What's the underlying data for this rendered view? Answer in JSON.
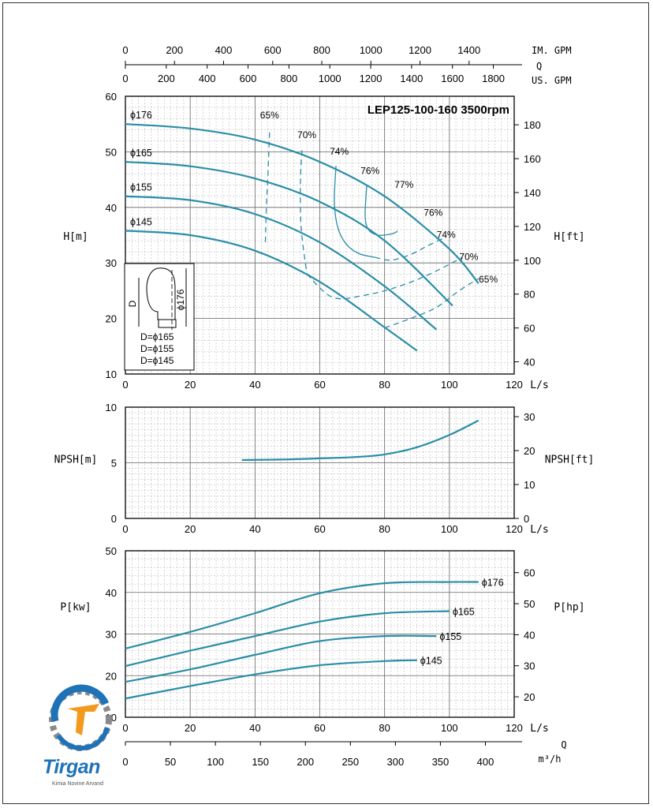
{
  "chart_data": [
    {
      "type": "line",
      "title": "LEP125-100-160 3500rpm",
      "xlabel": "L/s",
      "ylabel": "H[m]",
      "ylabel_right": "H[ft]",
      "xlim": [
        0,
        120
      ],
      "ylim": [
        10,
        60
      ],
      "x_ticks": [
        0,
        20,
        40,
        60,
        80,
        100,
        120
      ],
      "y_ticks": [
        10,
        20,
        30,
        40,
        50,
        60
      ],
      "y2_ticks": [
        40,
        60,
        80,
        100,
        120,
        140,
        160,
        180
      ],
      "top_axis_im_gpm": {
        "label": "IM. GPM",
        "ticks": [
          0,
          200,
          400,
          600,
          800,
          1000,
          1200,
          1400
        ]
      },
      "top_axis_us_gpm": {
        "label": "US. GPM",
        "ticks": [
          0,
          200,
          400,
          600,
          800,
          1000,
          1200,
          1400,
          1600,
          1800
        ]
      },
      "top_axis_q_label": "Q",
      "series": [
        {
          "name": "ϕ176",
          "x": [
            0,
            20,
            40,
            60,
            80,
            100,
            109
          ],
          "y": [
            55,
            54.2,
            52.2,
            48.2,
            42,
            32.5,
            26.3
          ]
        },
        {
          "name": "ϕ165",
          "x": [
            0,
            20,
            40,
            60,
            80,
            101
          ],
          "y": [
            48.2,
            47.4,
            45.2,
            41,
            34,
            22.3
          ]
        },
        {
          "name": "ϕ155",
          "x": [
            0,
            20,
            40,
            60,
            80,
            96
          ],
          "y": [
            42,
            41.3,
            38.8,
            33.7,
            25.8,
            18
          ]
        },
        {
          "name": "ϕ145",
          "x": [
            0,
            20,
            40,
            60,
            80,
            90
          ],
          "y": [
            35.8,
            35,
            32.2,
            26.6,
            18.4,
            14.2
          ]
        }
      ],
      "efficiency_curves": [
        {
          "label": "65%",
          "x": [
            44.5,
            44,
            43.5,
            43.2
          ],
          "y": [
            53.5,
            46,
            40,
            33.5
          ]
        },
        {
          "label": "70%",
          "x": [
            54.5,
            54,
            54.3,
            56
          ],
          "y": [
            50.3,
            44,
            36,
            28
          ]
        },
        {
          "label": "74%",
          "x": [
            65,
            64.5,
            65.5,
            68,
            72,
            77
          ],
          "y": [
            47.5,
            41,
            36.5,
            33.5,
            31.7,
            31
          ]
        },
        {
          "label": "76%",
          "x": [
            74.5,
            74,
            75,
            78,
            82,
            84
          ],
          "y": [
            44,
            38.5,
            36,
            35,
            35.2,
            35.7
          ]
        },
        {
          "label": "74%",
          "x": [
            77,
            82,
            88,
            93,
            98
          ],
          "y": [
            31,
            30.5,
            31.5,
            33,
            34.4
          ]
        },
        {
          "label": "70%",
          "x": [
            56,
            64,
            74,
            84,
            94,
            104
          ],
          "y": [
            28,
            23.8,
            24.2,
            25.7,
            28,
            31
          ]
        },
        {
          "label": "65%",
          "x": [
            80,
            88,
            96,
            103,
            109
          ],
          "y": [
            18.3,
            20,
            22,
            25,
            27.2
          ]
        }
      ],
      "efficiency_labels": [
        "65%",
        "70%",
        "74%",
        "76%",
        "77%",
        "76%",
        "74%",
        "70%",
        "65%"
      ],
      "impeller_inset": {
        "label_d": "D",
        "label_dia": "ϕ176",
        "lines": [
          "D=ϕ165",
          "D=ϕ155",
          "D=ϕ145"
        ]
      },
      "grid": true
    },
    {
      "type": "line",
      "xlabel": "L/s",
      "ylabel": "NPSH[m]",
      "ylabel_right": "NPSH[ft]",
      "xlim": [
        0,
        120
      ],
      "ylim": [
        0,
        10
      ],
      "x_ticks": [
        0,
        20,
        40,
        60,
        80,
        100,
        120
      ],
      "y_ticks": [
        0,
        5,
        10
      ],
      "y2_ticks": [
        0,
        10,
        20,
        30
      ],
      "series": [
        {
          "x": [
            36,
            50,
            60,
            70,
            80,
            90,
            100,
            109
          ],
          "y": [
            5.25,
            5.3,
            5.4,
            5.5,
            5.75,
            6.4,
            7.5,
            8.8
          ]
        }
      ],
      "grid": true
    },
    {
      "type": "line",
      "xlabel": "L/s",
      "ylabel": "P[kw]",
      "ylabel_right": "P[hp]",
      "xlim": [
        0,
        120
      ],
      "ylim": [
        10,
        50
      ],
      "x_ticks": [
        0,
        20,
        40,
        60,
        80,
        100,
        120
      ],
      "y_ticks": [
        10,
        20,
        30,
        40,
        50
      ],
      "y2_ticks": [
        20,
        30,
        40,
        50,
        60
      ],
      "bottom_axis_m3h": {
        "label": "m³/h",
        "ticks": [
          0,
          50,
          100,
          150,
          200,
          250,
          300,
          350,
          400
        ]
      },
      "bottom_axis_q_label": "Q",
      "series": [
        {
          "name": "ϕ176",
          "x": [
            0,
            20,
            40,
            60,
            80,
            100,
            109
          ],
          "y": [
            26.5,
            30.5,
            35,
            39.8,
            42.2,
            42.5,
            42.5
          ]
        },
        {
          "name": "ϕ165",
          "x": [
            0,
            20,
            40,
            60,
            80,
            100
          ],
          "y": [
            22.3,
            26,
            29.5,
            33,
            35,
            35.5
          ]
        },
        {
          "name": "ϕ155",
          "x": [
            0,
            20,
            40,
            60,
            80,
            96
          ],
          "y": [
            18.5,
            21.5,
            25,
            28.3,
            29.5,
            29.5
          ]
        },
        {
          "name": "ϕ145",
          "x": [
            0,
            20,
            40,
            60,
            80,
            90
          ],
          "y": [
            14.5,
            17.5,
            20.3,
            22.5,
            23.5,
            23.7
          ]
        }
      ],
      "grid": true
    }
  ],
  "logo": {
    "name": "Tirgan",
    "subtitle": "Kimia Novine Arvand"
  },
  "colors": {
    "curve": "#2a8ea6",
    "grid": "#888888",
    "axis": "#000000"
  }
}
